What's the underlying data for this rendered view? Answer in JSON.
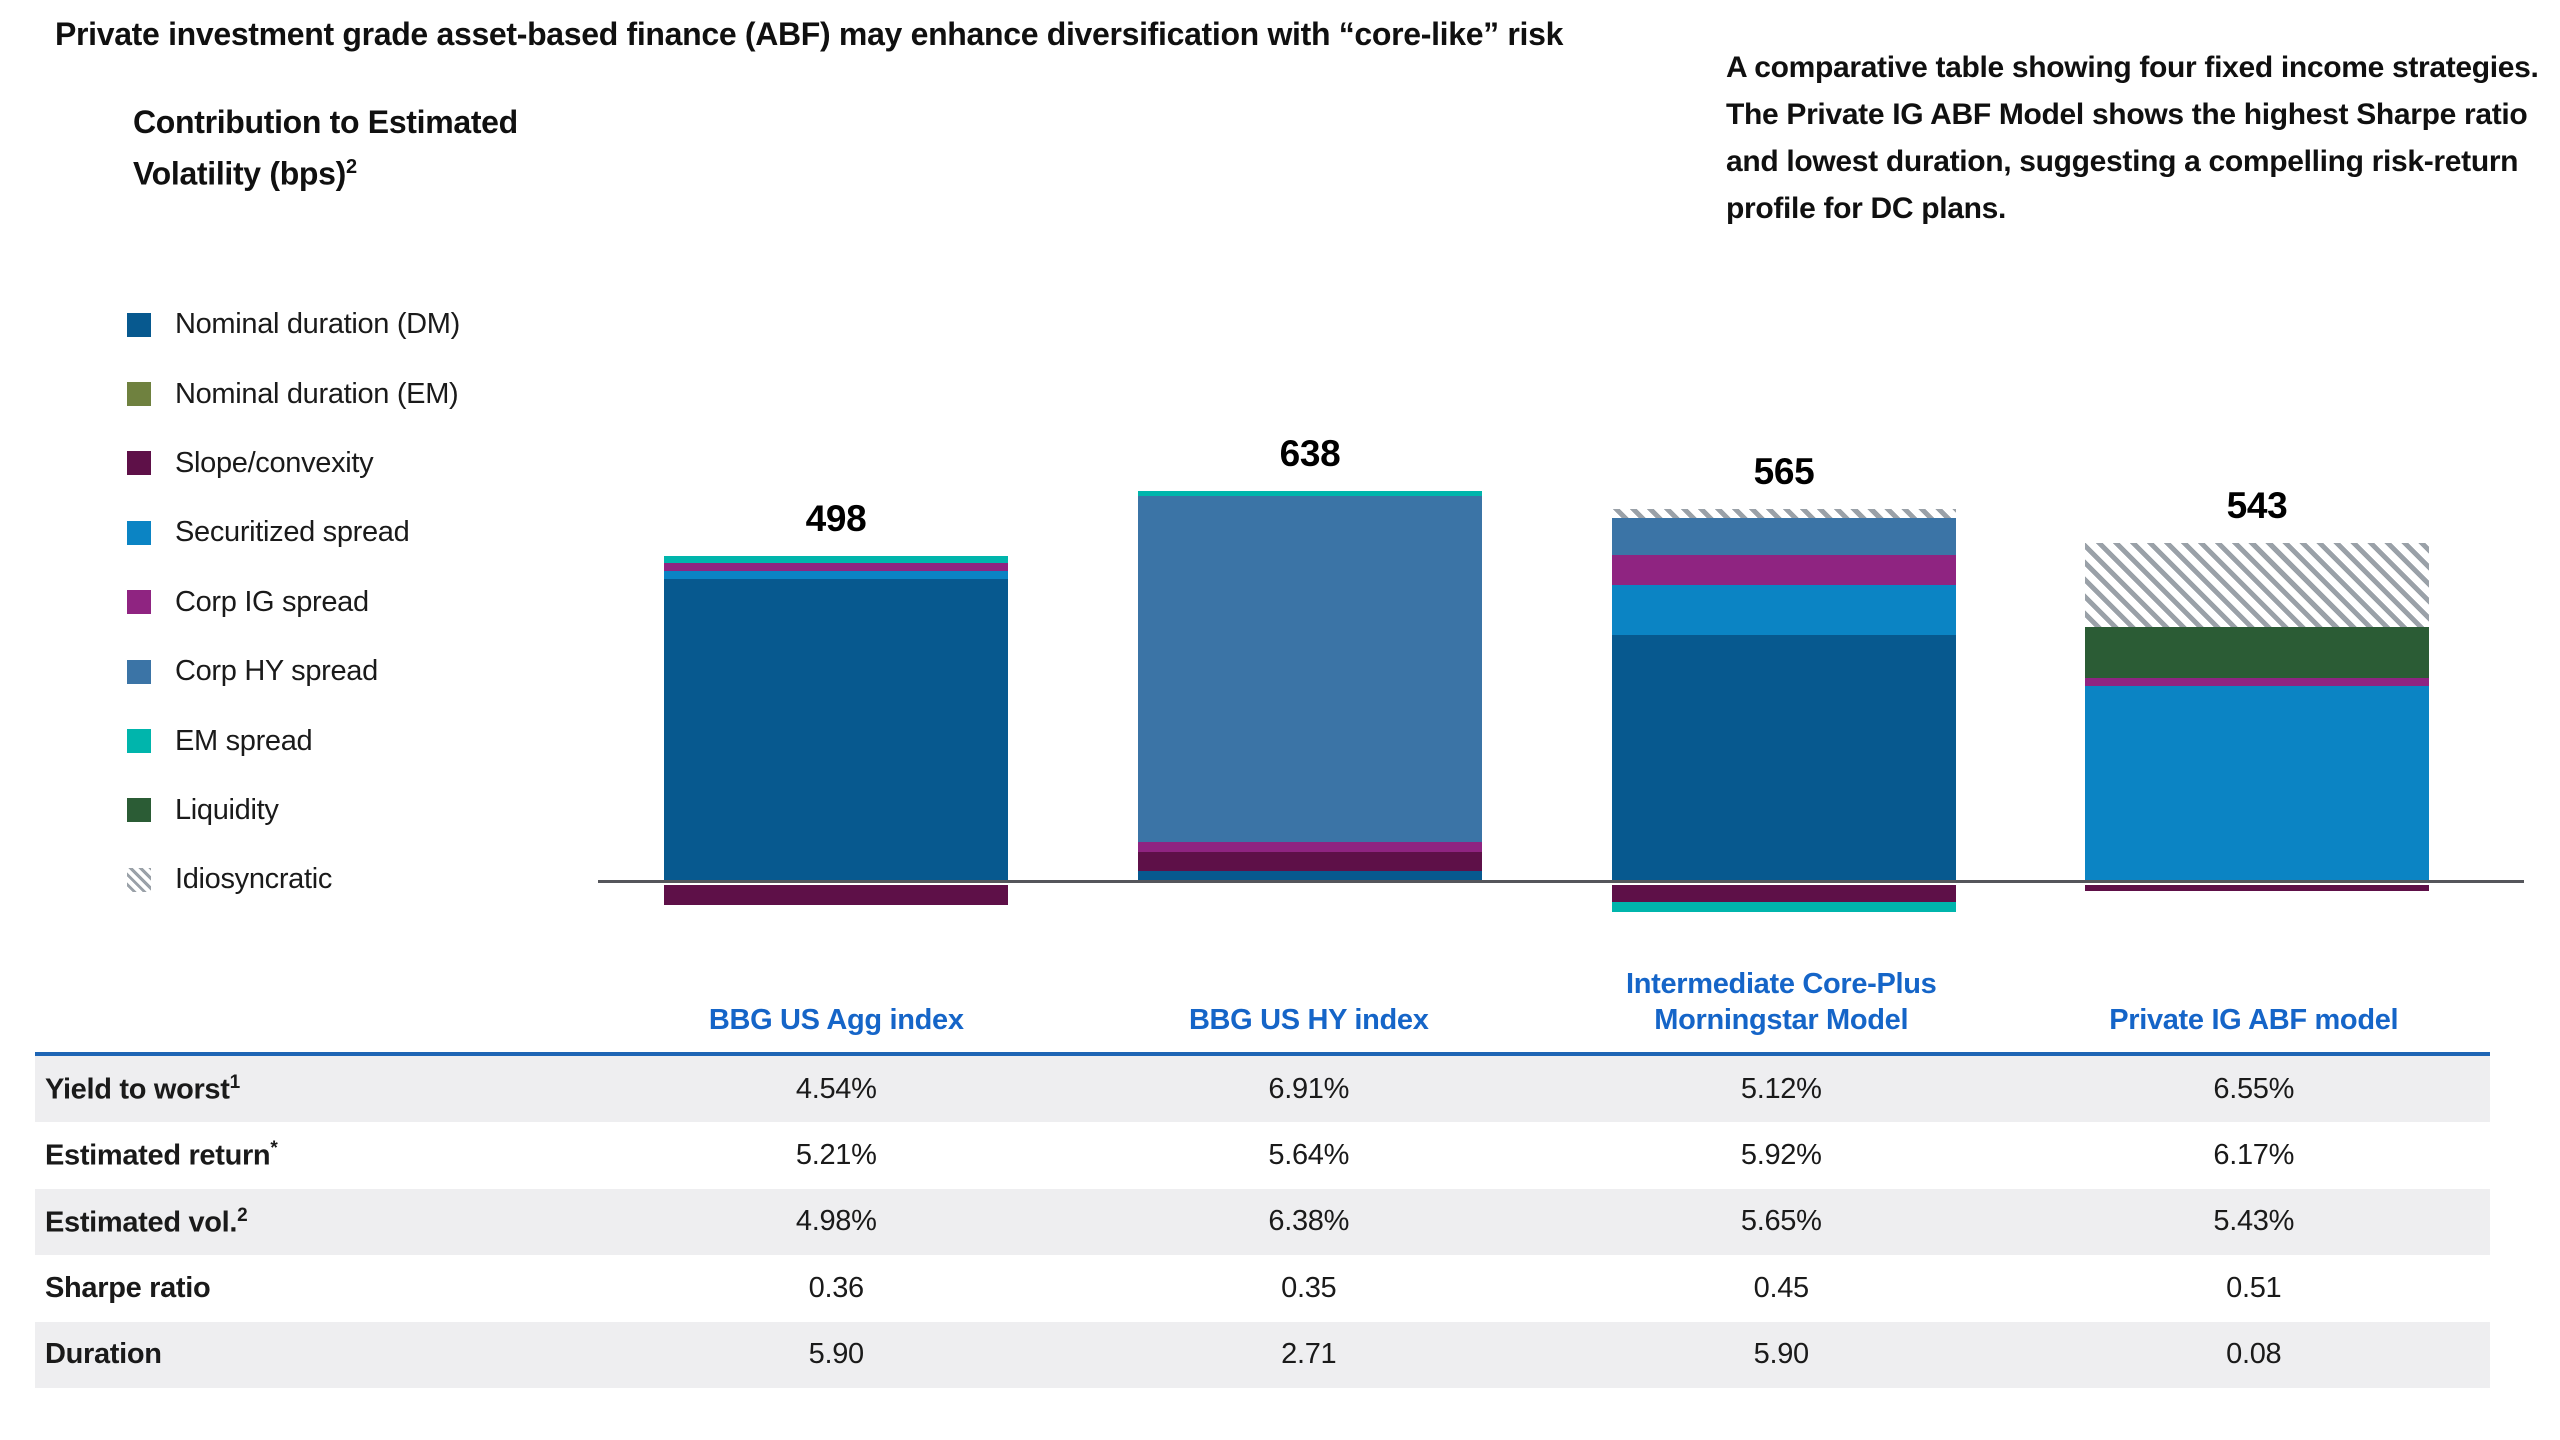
{
  "title": "Private investment grade asset-based finance (ABF) may enhance diversification with “core-like” risk",
  "annotation": "A comparative table showing four fixed income strategies. The Private IG ABF Model shows the highest Sharpe ratio and lowest duration, suggesting a compelling risk-return profile for DC plans.",
  "chart_heading": {
    "line1": "Contribution to Estimated",
    "line2": "Volatility (bps)",
    "sup": "2"
  },
  "colors": {
    "header_blue": "#1565c8",
    "table_topline": "#1e65b5",
    "row_stripe": "#eeeef0",
    "axis": "#55565b",
    "text": "#1a1a1a",
    "hatch_stripe": "#9aa1a8"
  },
  "chart_data": {
    "type": "bar",
    "stacked": true,
    "unit": "bps",
    "ylabel": "Contribution to Estimated Volatility (bps)",
    "legend_position": "left",
    "legend": [
      {
        "name": "Nominal duration (DM)",
        "color": "#07598f"
      },
      {
        "name": "Nominal duration (EM)",
        "color": "#6f813f"
      },
      {
        "name": "Slope/convexity",
        "color": "#5e1048"
      },
      {
        "name": "Securitized spread",
        "color": "#0b84c4"
      },
      {
        "name": "Corp IG spread",
        "color": "#8f2481"
      },
      {
        "name": "Corp HY spread",
        "color": "#3b74a6"
      },
      {
        "name": "EM spread",
        "color": "#00b5ac"
      },
      {
        "name": "Liquidity",
        "color": "#2b5c35"
      },
      {
        "name": "Idiosyncratic",
        "color": "#9aa1a8",
        "pattern": "hatch"
      }
    ],
    "categories": [
      "BBG US Agg index",
      "BBG US HY index",
      "Intermediate Core-Plus Morningstar Model",
      "Private IG ABF model"
    ],
    "totals": [
      498,
      638,
      565,
      543
    ],
    "bars": [
      {
        "category": "BBG US Agg index",
        "total": 498,
        "segments": [
          {
            "name": "Nominal duration (DM)",
            "value": 494
          },
          {
            "name": "Securitized spread",
            "value": 13
          },
          {
            "name": "Corp IG spread",
            "value": 13
          },
          {
            "name": "EM spread",
            "value": 11
          },
          {
            "name": "Slope/convexity",
            "value": -33
          }
        ]
      },
      {
        "category": "BBG US HY index",
        "total": 638,
        "segments": [
          {
            "name": "Nominal duration (DM)",
            "value": 18
          },
          {
            "name": "Slope/convexity",
            "value": 31
          },
          {
            "name": "Corp IG spread",
            "value": 16
          },
          {
            "name": "Corp HY spread",
            "value": 565
          },
          {
            "name": "EM spread",
            "value": 8
          }
        ]
      },
      {
        "category": "Intermediate Core-Plus Morningstar Model",
        "total": 565,
        "segments": [
          {
            "name": "Nominal duration (DM)",
            "value": 403
          },
          {
            "name": "Securitized spread",
            "value": 82
          },
          {
            "name": "Corp IG spread",
            "value": 49
          },
          {
            "name": "Corp HY spread",
            "value": 60
          },
          {
            "name": "Idiosyncratic",
            "value": 15
          },
          {
            "name": "Slope/convexity",
            "value": -28
          },
          {
            "name": "EM spread",
            "value": -16
          }
        ]
      },
      {
        "category": "Private IG ABF model",
        "total": 543,
        "segments": [
          {
            "name": "Securitized spread",
            "value": 320
          },
          {
            "name": "Corp IG spread",
            "value": 13
          },
          {
            "name": "Liquidity",
            "value": 83
          },
          {
            "name": "Idiosyncratic",
            "value": 137
          },
          {
            "name": "Slope/convexity",
            "value": -10
          }
        ]
      }
    ]
  },
  "table": {
    "columns": [
      "BBG US Agg index",
      "BBG US HY index",
      "Intermediate Core-Plus Morningstar Model",
      "Private IG ABF model"
    ],
    "rows": [
      {
        "label": "Yield to worst",
        "sup": "1",
        "values": [
          "4.54%",
          "6.91%",
          "5.12%",
          "6.55%"
        ]
      },
      {
        "label": "Estimated return",
        "sup": "*",
        "values": [
          "5.21%",
          "5.64%",
          "5.92%",
          "6.17%"
        ]
      },
      {
        "label": "Estimated vol.",
        "sup": "2",
        "values": [
          "4.98%",
          "6.38%",
          "5.65%",
          "5.43%"
        ]
      },
      {
        "label": "Sharpe ratio",
        "sup": "",
        "values": [
          "0.36",
          "0.35",
          "0.45",
          "0.51"
        ]
      },
      {
        "label": "Duration",
        "sup": "",
        "values": [
          "5.90",
          "2.71",
          "5.90",
          "0.08"
        ]
      }
    ]
  }
}
